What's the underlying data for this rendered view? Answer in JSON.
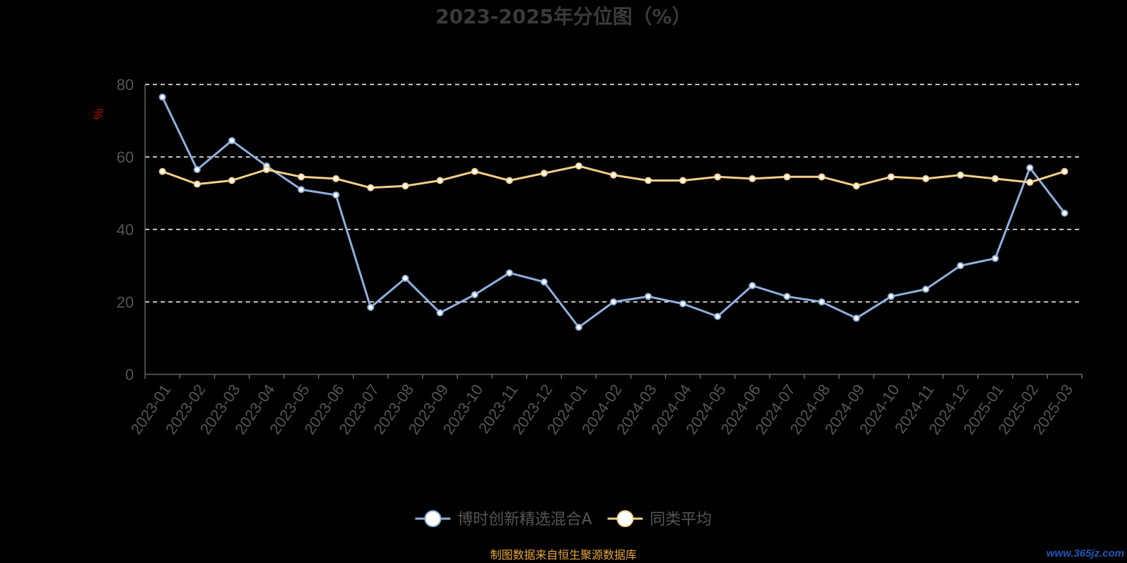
{
  "chart_data": {
    "type": "line",
    "title": "2023-2025年分位图（%）",
    "ylabel": "%",
    "ylim": [
      0,
      80
    ],
    "yticks": [
      0,
      20,
      40,
      60,
      80
    ],
    "grid": true,
    "legend_placement": "bottom-center",
    "categories": [
      "2023-01",
      "2023-02",
      "2023-03",
      "2023-04",
      "2023-05",
      "2023-06",
      "2023-07",
      "2023-08",
      "2023-09",
      "2023-10",
      "2023-11",
      "2023-12",
      "2024-01",
      "2024-02",
      "2024-03",
      "2024-04",
      "2024-05",
      "2024-06",
      "2024-07",
      "2024-08",
      "2024-09",
      "2024-10",
      "2024-11",
      "2024-12",
      "2025-01",
      "2025-02",
      "2025-03"
    ],
    "series": [
      {
        "name": "博时创新精选混合A",
        "color": "#8fb0dd",
        "values": [
          76.5,
          56.5,
          64.5,
          57.5,
          51,
          49.5,
          18.5,
          26.5,
          17,
          22,
          28,
          25.5,
          13,
          20,
          21.5,
          19.5,
          16,
          24.5,
          21.5,
          20,
          15.5,
          21.5,
          23.5,
          30,
          32,
          57,
          44.5
        ]
      },
      {
        "name": "同类平均",
        "color": "#f6d08a",
        "values": [
          56,
          52.5,
          53.5,
          56.5,
          54.5,
          54,
          51.5,
          52,
          53.5,
          56,
          53.5,
          55.5,
          57.5,
          55,
          53.5,
          53.5,
          54.5,
          54,
          54.5,
          54.5,
          52,
          54.5,
          54,
          55,
          54,
          53,
          56
        ]
      }
    ]
  },
  "source_note": "制图数据来自恒生聚源数据库",
  "watermark": "www.365jz.com",
  "colors": {
    "background": "#000000",
    "axis": "#666666",
    "gridline": "#ffffff",
    "marker_fill": "#ffffff"
  }
}
